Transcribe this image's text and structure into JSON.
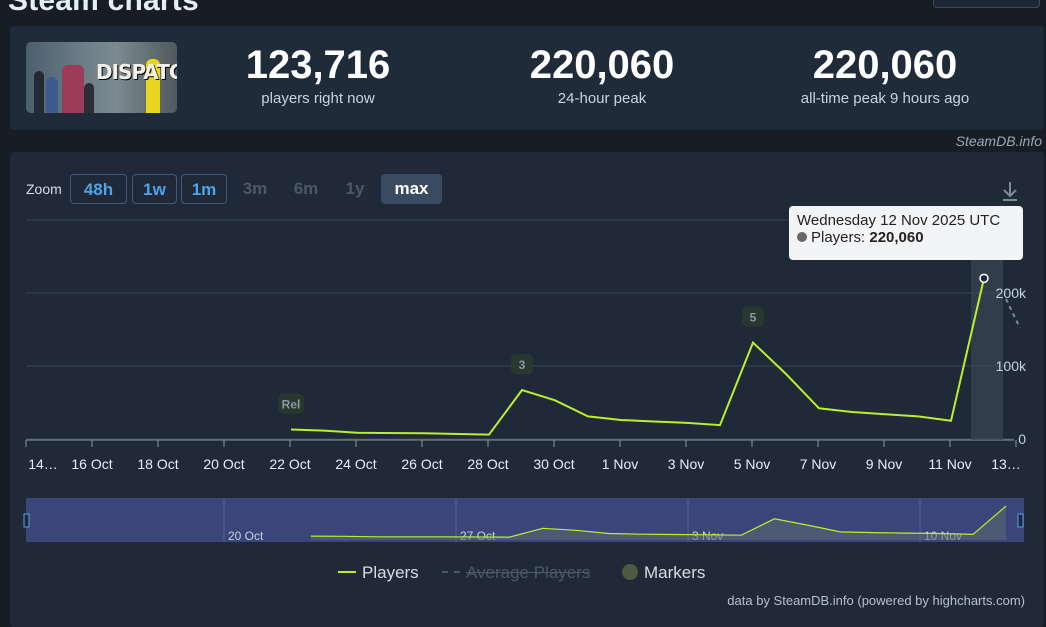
{
  "page": {
    "title": "Steam charts"
  },
  "stats": {
    "game_logo_text": "DISPATCH",
    "items": [
      {
        "value": "123,716",
        "label": "players right now"
      },
      {
        "value": "220,060",
        "label": "24-hour peak"
      },
      {
        "value": "220,060",
        "label": "all-time peak 9 hours ago"
      }
    ],
    "source_link": "SteamDB.info"
  },
  "zoom": {
    "label": "Zoom",
    "buttons": [
      {
        "label": "48h",
        "state": "active"
      },
      {
        "label": "1w",
        "state": "active"
      },
      {
        "label": "1m",
        "state": "active"
      },
      {
        "label": "3m",
        "state": "disabled"
      },
      {
        "label": "6m",
        "state": "disabled"
      },
      {
        "label": "1y",
        "state": "disabled"
      },
      {
        "label": "max",
        "state": "selected"
      }
    ],
    "download_icon": "download-icon"
  },
  "tooltip": {
    "date": "Wednesday 12 Nov 2025 UTC",
    "series_label": "Players:",
    "value": "220,060"
  },
  "chart_data": {
    "type": "line",
    "series": [
      {
        "name": "Players",
        "color": "#b8f02c",
        "points": [
          [
            "2025-10-22",
            13000
          ],
          [
            "2025-10-23",
            11500
          ],
          [
            "2025-10-24",
            8500
          ],
          [
            "2025-10-26",
            8000
          ],
          [
            "2025-10-28",
            6000
          ],
          [
            "2025-10-29",
            67000
          ],
          [
            "2025-10-30",
            53000
          ],
          [
            "2025-10-31",
            31000
          ],
          [
            "2025-11-01",
            26000
          ],
          [
            "2025-11-02",
            24000
          ],
          [
            "2025-11-03",
            22000
          ],
          [
            "2025-11-04",
            19000
          ],
          [
            "2025-11-05",
            132000
          ],
          [
            "2025-11-06",
            89000
          ],
          [
            "2025-11-07",
            42000
          ],
          [
            "2025-11-08",
            37000
          ],
          [
            "2025-11-09",
            34000
          ],
          [
            "2025-11-10",
            31000
          ],
          [
            "2025-11-11",
            25000
          ],
          [
            "2025-11-12",
            220060
          ]
        ]
      }
    ],
    "y_ticks": [
      {
        "value": 0,
        "label": "0"
      },
      {
        "value": 100000,
        "label": "100k"
      },
      {
        "value": 200000,
        "label": "200k"
      }
    ],
    "ylim": [
      0,
      300000
    ],
    "x_ticks": [
      "14…",
      "16 Oct",
      "18 Oct",
      "20 Oct",
      "22 Oct",
      "24 Oct",
      "26 Oct",
      "28 Oct",
      "30 Oct",
      "1 Nov",
      "3 Nov",
      "5 Nov",
      "7 Nov",
      "9 Nov",
      "11 Nov",
      "13…"
    ],
    "markers": [
      {
        "date": "2025-10-22",
        "label": "Rel"
      },
      {
        "date": "2025-10-29",
        "label": "3"
      },
      {
        "date": "2025-11-05",
        "label": "5"
      }
    ],
    "navigator_ticks": [
      "20 Oct",
      "27 Oct",
      "3 Nov",
      "10 Nov"
    ],
    "legend": [
      {
        "label": "Players",
        "enabled": true,
        "color": "#b8f02c"
      },
      {
        "label": "Average Players",
        "enabled": false,
        "color": "#4b5868"
      },
      {
        "label": "Markers",
        "enabled": true,
        "color": "#4e5a3e"
      }
    ],
    "credit": "data by SteamDB.info (powered by highcharts.com)",
    "grid": true
  }
}
